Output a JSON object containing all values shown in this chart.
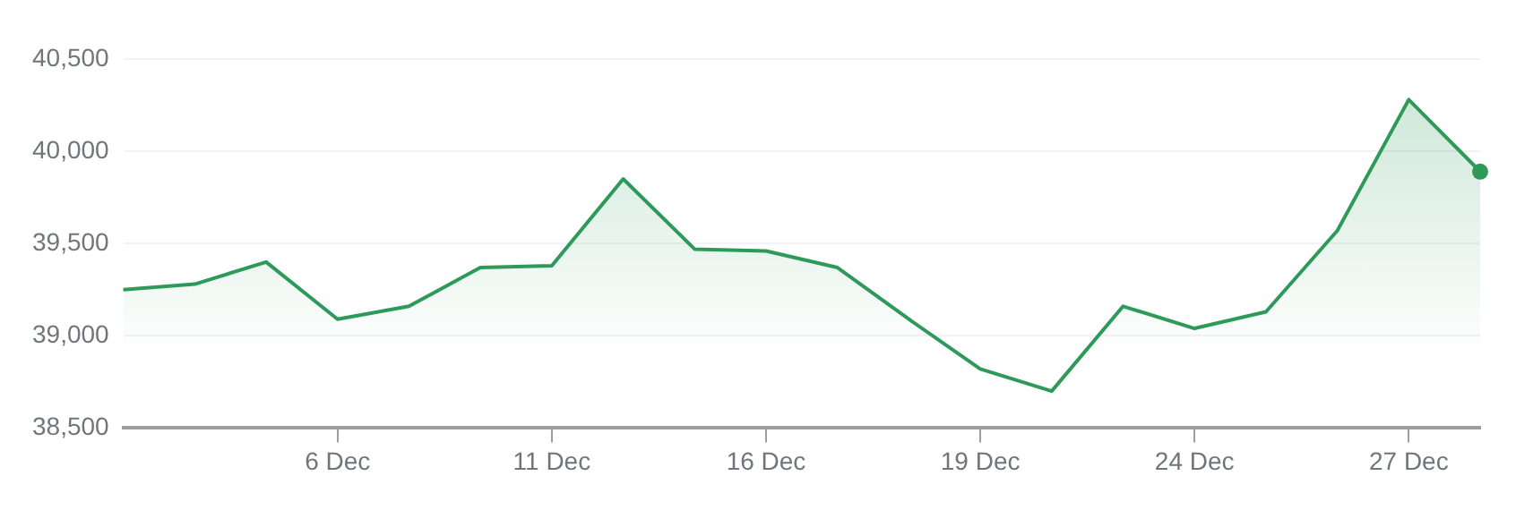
{
  "chart_data": {
    "type": "area",
    "categories": [
      null,
      null,
      null,
      "6 Dec",
      null,
      null,
      "11 Dec",
      null,
      null,
      "16 Dec",
      null,
      null,
      "19 Dec",
      null,
      null,
      "24 Dec",
      null,
      null,
      "27 Dec",
      null
    ],
    "series": [
      {
        "color": "#2e9a5a",
        "values": [
          39250,
          39280,
          39400,
          39090,
          39160,
          39370,
          39380,
          39850,
          39470,
          39460,
          39370,
          39090,
          38820,
          38700,
          39160,
          39040,
          39130,
          39570,
          40280,
          39890
        ]
      }
    ],
    "ylim": [
      38500,
      40500
    ],
    "yticks": [
      {
        "value": 38500,
        "label": "38,500"
      },
      {
        "value": 39000,
        "label": "39,000"
      },
      {
        "value": 39500,
        "label": "39,500"
      },
      {
        "value": 40000,
        "label": "40,000"
      },
      {
        "value": 40500,
        "label": "40,500"
      }
    ],
    "grid": "y",
    "legend": false
  }
}
